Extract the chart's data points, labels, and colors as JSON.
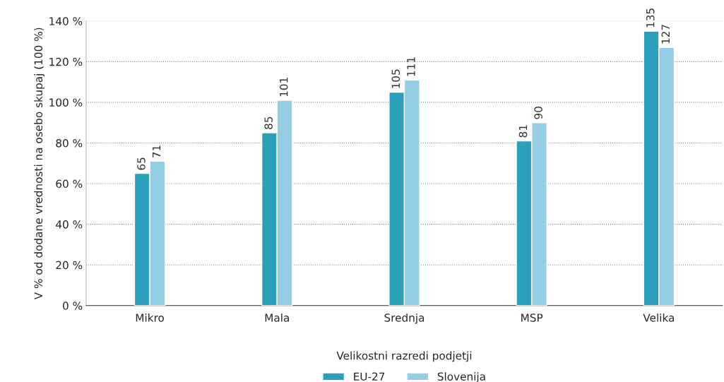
{
  "chart_data": {
    "type": "bar",
    "ylabel": "V % od dodane vrednosti na osebo skupaj (100 %)",
    "xlabel": "Velikostni razredi podjetji",
    "categories": [
      "Mikro",
      "Mala",
      "Srednja",
      "MSP",
      "Velika"
    ],
    "series": [
      {
        "name": "EU-27",
        "color": "#2aa0bb",
        "values": [
          65,
          85,
          105,
          81,
          135
        ]
      },
      {
        "name": "Slovenija",
        "color": "#93cde6",
        "values": [
          71,
          101,
          111,
          90,
          127
        ]
      }
    ],
    "ylim": [
      0,
      140
    ],
    "yticks": [
      {
        "value": 0,
        "label": "0 %"
      },
      {
        "value": 20,
        "label": "20 %"
      },
      {
        "value": 40,
        "label": "40 %"
      },
      {
        "value": 60,
        "label": "60 %"
      },
      {
        "value": 80,
        "label": "80 %"
      },
      {
        "value": 100,
        "label": "100 %"
      },
      {
        "value": 120,
        "label": "120 %"
      },
      {
        "value": 140,
        "label": "140 %"
      }
    ],
    "grid": "y",
    "legend": "bottom",
    "data_labels": true
  }
}
